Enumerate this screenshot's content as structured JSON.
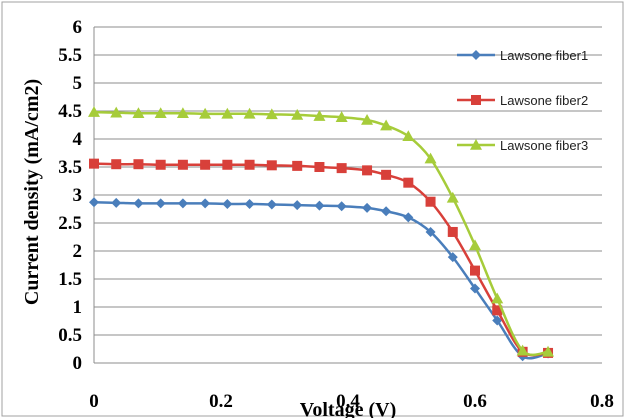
{
  "chart_data": {
    "type": "line",
    "title": "",
    "xlabel": "Voltage (V)",
    "ylabel": "Current density (mA/cm2)",
    "xlim": [
      0,
      0.8
    ],
    "ylim": [
      0,
      6
    ],
    "x_ticks": [
      "0",
      "0.2",
      "0.4",
      "0.6",
      "0.8"
    ],
    "y_ticks": [
      "0",
      "0.5",
      "1",
      "1.5",
      "2",
      "2.5",
      "3",
      "3.5",
      "4",
      "4.5",
      "5",
      "5.5",
      "6"
    ],
    "grid": "horizontal",
    "legend_position": "top-right",
    "series": [
      {
        "name": "Lawsone fiber1",
        "color": "#4a7ebb",
        "marker": "diamond",
        "x": [
          0,
          0.035,
          0.07,
          0.105,
          0.14,
          0.175,
          0.21,
          0.245,
          0.28,
          0.32,
          0.355,
          0.39,
          0.43,
          0.46,
          0.495,
          0.53,
          0.565,
          0.6,
          0.635,
          0.675,
          0.715
        ],
        "y": [
          2.87,
          2.86,
          2.85,
          2.85,
          2.85,
          2.85,
          2.84,
          2.84,
          2.83,
          2.82,
          2.81,
          2.8,
          2.77,
          2.71,
          2.6,
          2.34,
          1.89,
          1.33,
          0.76,
          0.12,
          0.17
        ]
      },
      {
        "name": "Lawsone fiber2",
        "color": "#d8403a",
        "marker": "square",
        "x": [
          0,
          0.035,
          0.07,
          0.105,
          0.14,
          0.175,
          0.21,
          0.245,
          0.28,
          0.32,
          0.355,
          0.39,
          0.43,
          0.46,
          0.495,
          0.53,
          0.565,
          0.6,
          0.635,
          0.675,
          0.715
        ],
        "y": [
          3.56,
          3.55,
          3.55,
          3.54,
          3.54,
          3.54,
          3.54,
          3.54,
          3.53,
          3.52,
          3.5,
          3.48,
          3.44,
          3.36,
          3.22,
          2.88,
          2.34,
          1.65,
          0.94,
          0.2,
          0.18
        ]
      },
      {
        "name": "Lawsone fiber3",
        "color": "#a6cc3a",
        "marker": "triangle",
        "x": [
          0,
          0.035,
          0.07,
          0.105,
          0.14,
          0.175,
          0.21,
          0.245,
          0.28,
          0.32,
          0.355,
          0.39,
          0.43,
          0.46,
          0.495,
          0.53,
          0.565,
          0.6,
          0.635,
          0.675,
          0.715
        ],
        "y": [
          4.48,
          4.47,
          4.46,
          4.46,
          4.46,
          4.45,
          4.45,
          4.45,
          4.44,
          4.43,
          4.41,
          4.39,
          4.34,
          4.24,
          4.05,
          3.65,
          2.95,
          2.1,
          1.15,
          0.22,
          0.2
        ]
      }
    ]
  }
}
